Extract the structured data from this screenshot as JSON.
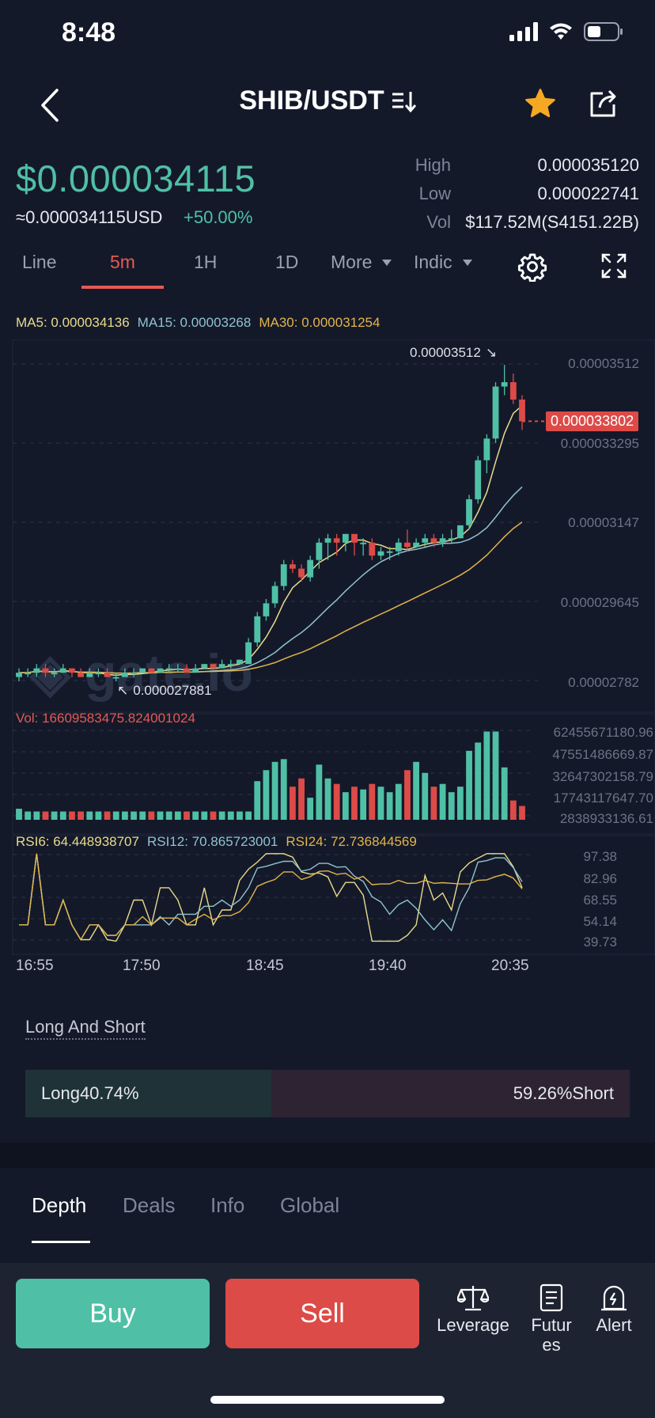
{
  "status": {
    "time": "8:48"
  },
  "header": {
    "pair": "SHIB/USDT"
  },
  "price": {
    "last": "$0.000034115",
    "usd_approx": "≈0.000034115USD",
    "change_pct": "+50.00%"
  },
  "stats": [
    {
      "label": "High",
      "value": "0.000035120"
    },
    {
      "label": "Low",
      "value": "0.000022741"
    },
    {
      "label": "Vol",
      "value": "$117.52M(S4151.22B)"
    }
  ],
  "tabs": [
    {
      "label": "Line"
    },
    {
      "label": "5m",
      "active": true
    },
    {
      "label": "1H"
    },
    {
      "label": "1D"
    },
    {
      "label": "More"
    },
    {
      "label": "Indic"
    }
  ],
  "ma": {
    "ma5": "MA5: 0.000034136",
    "ma15": "MA15: 0.00003268",
    "ma30": "MA30: 0.000031254"
  },
  "price_axis": [
    "0.00003512",
    "0.000033295",
    "0.00003147",
    "0.000029645",
    "0.00002782"
  ],
  "current_price_tag": "0.000033802",
  "max_marker": "0.00003512",
  "min_marker": "0.000027881",
  "volume": {
    "title": "Vol: 16609583475.824001024",
    "axis": [
      "62455671180.96",
      "47551486669.87",
      "32647302158.79",
      "17743117647.70",
      "2838933136.61"
    ]
  },
  "rsi": {
    "rsi6": "RSI6: 64.448938707",
    "rsi12": "RSI12: 70.865723001",
    "rsi24": "RSI24: 72.736844569",
    "axis": [
      "97.38",
      "82.96",
      "68.55",
      "54.14",
      "39.73"
    ]
  },
  "time_axis": [
    "16:55",
    "17:50",
    "18:45",
    "19:40",
    "20:35"
  ],
  "long_short": {
    "title": "Long And Short",
    "long_label": "Long40.74%",
    "short_label": "59.26%Short",
    "long_fraction": 0.4074
  },
  "bottom_tabs": [
    {
      "label": "Depth",
      "active": true
    },
    {
      "label": "Deals"
    },
    {
      "label": "Info"
    },
    {
      "label": "Global"
    }
  ],
  "actions": {
    "buy": "Buy",
    "sell": "Sell",
    "leverage": "Leverage",
    "futures_line1": "Futur",
    "futures_line2": "es",
    "alert": "Alert"
  },
  "colors": {
    "up": "#4fc0a5",
    "down": "#dc4b47",
    "ma5": "#e8dc8a",
    "ma15": "#8fc3d0",
    "ma30": "#e3b54a",
    "watermark": "gate.io"
  },
  "chart_data": {
    "type": "candlestick",
    "categories": [
      "16:55",
      "17:50",
      "18:45",
      "19:40",
      "20:35"
    ],
    "candles": [
      [
        2.79e-05,
        2.8e-05,
        2.81e-05,
        2.78e-05
      ],
      [
        2.8e-05,
        2.8e-05,
        2.81e-05,
        2.79e-05
      ],
      [
        2.8e-05,
        2.81e-05,
        2.82e-05,
        2.79e-05
      ],
      [
        2.81e-05,
        2.8e-05,
        2.82e-05,
        2.79e-05
      ],
      [
        2.8e-05,
        2.8e-05,
        2.81e-05,
        2.79e-05
      ],
      [
        2.8e-05,
        2.81e-05,
        2.82e-05,
        2.8e-05
      ],
      [
        2.81e-05,
        2.8e-05,
        2.81e-05,
        2.79e-05
      ],
      [
        2.8e-05,
        2.79e-05,
        2.81e-05,
        2.79e-05
      ],
      [
        2.79e-05,
        2.8e-05,
        2.81e-05,
        2.79e-05
      ],
      [
        2.8e-05,
        2.8e-05,
        2.81e-05,
        2.79e-05
      ],
      [
        2.8e-05,
        2.79e-05,
        2.81e-05,
        2.79e-05
      ],
      [
        2.79e-05,
        2.79e-05,
        2.8e-05,
        2.78e-05
      ],
      [
        2.79e-05,
        2.8e-05,
        2.81e-05,
        2.79e-05
      ],
      [
        2.8e-05,
        2.8e-05,
        2.81e-05,
        2.79e-05
      ],
      [
        2.8e-05,
        2.81e-05,
        2.81e-05,
        2.8e-05
      ],
      [
        2.81e-05,
        2.8e-05,
        2.81e-05,
        2.8e-05
      ],
      [
        2.8e-05,
        2.81e-05,
        2.81e-05,
        2.8e-05
      ],
      [
        2.81e-05,
        2.81e-05,
        2.82e-05,
        2.8e-05
      ],
      [
        2.81e-05,
        2.81e-05,
        2.82e-05,
        2.8e-05
      ],
      [
        2.81e-05,
        2.8e-05,
        2.82e-05,
        2.8e-05
      ],
      [
        2.8e-05,
        2.81e-05,
        2.82e-05,
        2.8e-05
      ],
      [
        2.81e-05,
        2.82e-05,
        2.82e-05,
        2.81e-05
      ],
      [
        2.82e-05,
        2.81e-05,
        2.82e-05,
        2.81e-05
      ],
      [
        2.81e-05,
        2.82e-05,
        2.83e-05,
        2.81e-05
      ],
      [
        2.82e-05,
        2.82e-05,
        2.83e-05,
        2.81e-05
      ],
      [
        2.82e-05,
        2.83e-05,
        2.83e-05,
        2.82e-05
      ],
      [
        2.82e-05,
        2.87e-05,
        2.88e-05,
        2.82e-05
      ],
      [
        2.87e-05,
        2.93e-05,
        2.94e-05,
        2.86e-05
      ],
      [
        2.93e-05,
        2.96e-05,
        2.97e-05,
        2.92e-05
      ],
      [
        2.96e-05,
        3e-05,
        3.01e-05,
        2.95e-05
      ],
      [
        3e-05,
        3.05e-05,
        3.06e-05,
        2.99e-05
      ],
      [
        3.05e-05,
        3.04e-05,
        3.06e-05,
        3.03e-05
      ],
      [
        3.04e-05,
        3.02e-05,
        3.05e-05,
        3.01e-05
      ],
      [
        3.02e-05,
        3.06e-05,
        3.07e-05,
        3.01e-05
      ],
      [
        3.06e-05,
        3.1e-05,
        3.11e-05,
        3.04e-05
      ],
      [
        3.1e-05,
        3.11e-05,
        3.12e-05,
        3.06e-05
      ],
      [
        3.11e-05,
        3.1e-05,
        3.12e-05,
        3.07e-05
      ],
      [
        3.1e-05,
        3.12e-05,
        3.12e-05,
        3.08e-05
      ],
      [
        3.12e-05,
        3.1e-05,
        3.12e-05,
        3.07e-05
      ],
      [
        3.1e-05,
        3.1e-05,
        3.11e-05,
        3.07e-05
      ],
      [
        3.1e-05,
        3.07e-05,
        3.11e-05,
        3.06e-05
      ],
      [
        3.07e-05,
        3.08e-05,
        3.09e-05,
        3.06e-05
      ],
      [
        3.08e-05,
        3.08e-05,
        3.09e-05,
        3.06e-05
      ],
      [
        3.08e-05,
        3.1e-05,
        3.11e-05,
        3.07e-05
      ],
      [
        3.1e-05,
        3.09e-05,
        3.13e-05,
        3.08e-05
      ],
      [
        3.09e-05,
        3.1e-05,
        3.11e-05,
        3.09e-05
      ],
      [
        3.1e-05,
        3.11e-05,
        3.12e-05,
        3.09e-05
      ],
      [
        3.11e-05,
        3.1e-05,
        3.12e-05,
        3.09e-05
      ],
      [
        3.1e-05,
        3.11e-05,
        3.12e-05,
        3.09e-05
      ],
      [
        3.11e-05,
        3.11e-05,
        3.13e-05,
        3.1e-05
      ],
      [
        3.11e-05,
        3.14e-05,
        3.14e-05,
        3.11e-05
      ],
      [
        3.14e-05,
        3.2e-05,
        3.21e-05,
        3.13e-05
      ],
      [
        3.2e-05,
        3.29e-05,
        3.3e-05,
        3.19e-05
      ],
      [
        3.29e-05,
        3.34e-05,
        3.35e-05,
        3.26e-05
      ],
      [
        3.34e-05,
        3.46e-05,
        3.47e-05,
        3.33e-05
      ],
      [
        3.46e-05,
        3.47e-05,
        3.51e-05,
        3.44e-05
      ],
      [
        3.47e-05,
        3.43e-05,
        3.49e-05,
        3.42e-05
      ],
      [
        3.43e-05,
        3.38e-05,
        3.44e-05,
        3.36e-05
      ]
    ],
    "volumes": [
      4,
      3,
      3,
      3,
      3,
      3,
      3,
      3,
      3,
      3,
      3,
      3,
      3,
      3,
      3,
      3,
      3,
      3,
      3,
      3,
      3,
      3,
      3,
      3,
      3,
      3,
      3,
      14,
      18,
      21,
      22,
      12,
      15,
      8,
      20,
      15,
      13,
      10,
      12,
      11,
      13,
      12,
      10,
      13,
      18,
      21,
      17,
      12,
      13,
      10,
      12,
      25,
      28,
      32,
      32,
      19,
      7,
      5
    ],
    "ylim": [
      2.782e-05,
      3.512e-05
    ]
  }
}
